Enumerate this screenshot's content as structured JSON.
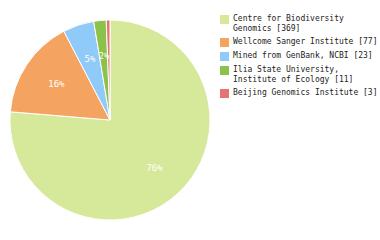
{
  "chart_data": {
    "type": "pie",
    "categories": [
      "Centre for Biodiversity\nGenomics [369]",
      "Wellcome Sanger Institute [77]",
      "Mined from GenBank, NCBI [23]",
      "Ilia State University,\nInstitute of Ecology [11]",
      "Beijing Genomics Institute [3]"
    ],
    "values": [
      76,
      16,
      5,
      2,
      0.6
    ],
    "value_labels": [
      "76%",
      "16%",
      "5%",
      "2%",
      null
    ],
    "colors": [
      "#d6e89a",
      "#f4a460",
      "#90caf9",
      "#8bc34a",
      "#e57373"
    ],
    "data_labels": true,
    "legend": "right"
  }
}
